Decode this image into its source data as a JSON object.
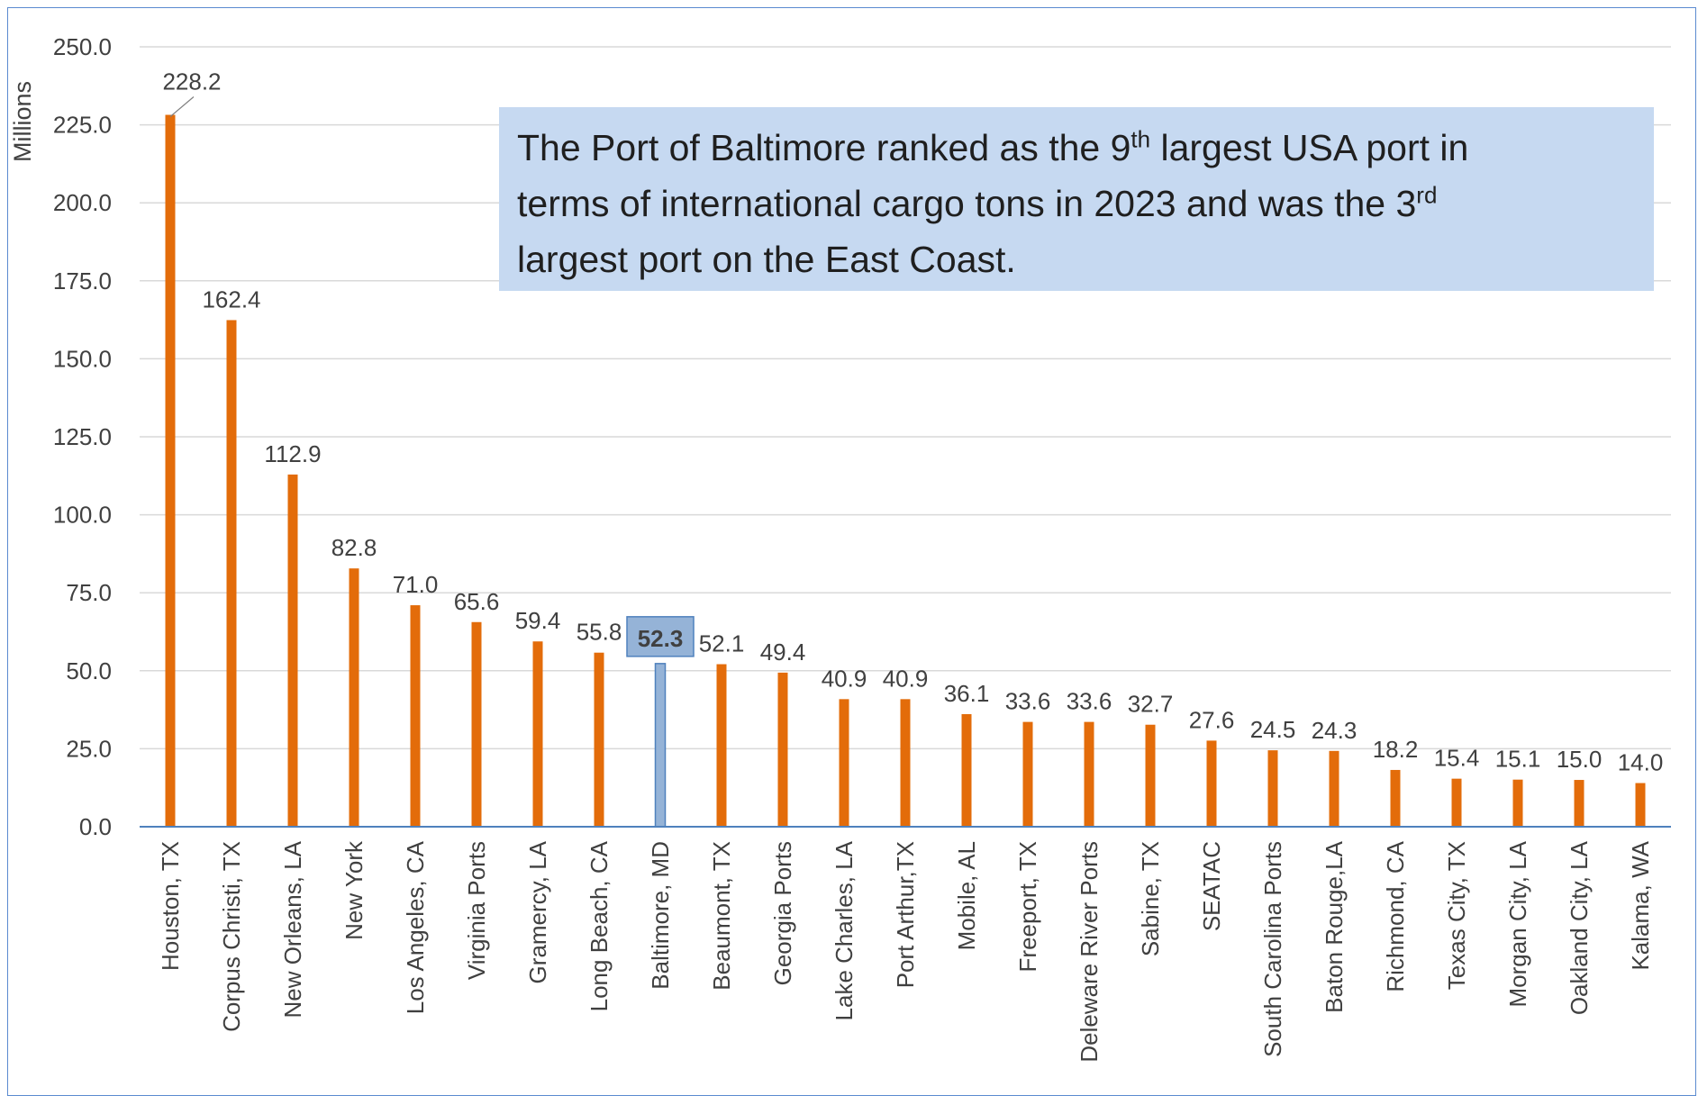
{
  "callout": {
    "line1_a": "The Port of Baltimore ranked as the 9",
    "line1_sup": "th",
    "line1_b": " largest USA port in",
    "line2_a": "terms of international cargo tons in 2023 and was the 3",
    "line2_sup": "rd",
    "line3": "largest port on the East Coast."
  },
  "colors": {
    "bar": "#e36c0a",
    "highlight_bar": "#95b3d7",
    "highlight_border": "#4f81bd",
    "grid": "#d9d9d9",
    "axis": "#4f81bd",
    "callout_bg": "#c6d9f1"
  },
  "chart_data": {
    "type": "bar",
    "title": "",
    "xlabel": "",
    "ylabel": "Millions",
    "ylim": [
      0,
      250
    ],
    "yticks": [
      "0.0",
      "25.0",
      "50.0",
      "75.0",
      "100.0",
      "125.0",
      "150.0",
      "175.0",
      "200.0",
      "225.0",
      "250.0"
    ],
    "grid": true,
    "highlight": "Baltimore, MD",
    "categories": [
      "Houston, TX",
      "Corpus Christi, TX",
      "New Orleans, LA",
      "New York",
      "Los Angeles, CA",
      "Virginia Ports",
      "Gramercy, LA",
      "Long Beach, CA",
      "Baltimore, MD",
      "Beaumont, TX",
      "Georgia Ports",
      "Lake Charles, LA",
      "Port Arthur,TX",
      "Mobile, AL",
      "Freeport, TX",
      "Deleware River Ports",
      "Sabine, TX",
      "SEATAC",
      "South Carolina Ports",
      "Baton Rouge,LA",
      "Richmond, CA",
      "Texas City, TX",
      "Morgan City, LA",
      "Oakland City, LA",
      "Kalama, WA"
    ],
    "values": [
      228.2,
      162.4,
      112.9,
      82.8,
      71.0,
      65.6,
      59.4,
      55.8,
      52.3,
      52.1,
      49.4,
      40.9,
      40.9,
      36.1,
      33.6,
      33.6,
      32.7,
      27.6,
      24.5,
      24.3,
      18.2,
      15.4,
      15.1,
      15.0,
      14.0
    ],
    "value_labels": [
      "228.2",
      "162.4",
      "112.9",
      "82.8",
      "71.0",
      "65.6",
      "59.4",
      "55.8",
      "52.3",
      "52.1",
      "49.4",
      "40.9",
      "40.9",
      "36.1",
      "33.6",
      "33.6",
      "32.7",
      "27.6",
      "24.5",
      "24.3",
      "18.2",
      "15.4",
      "15.1",
      "15.0",
      "14.0"
    ]
  }
}
